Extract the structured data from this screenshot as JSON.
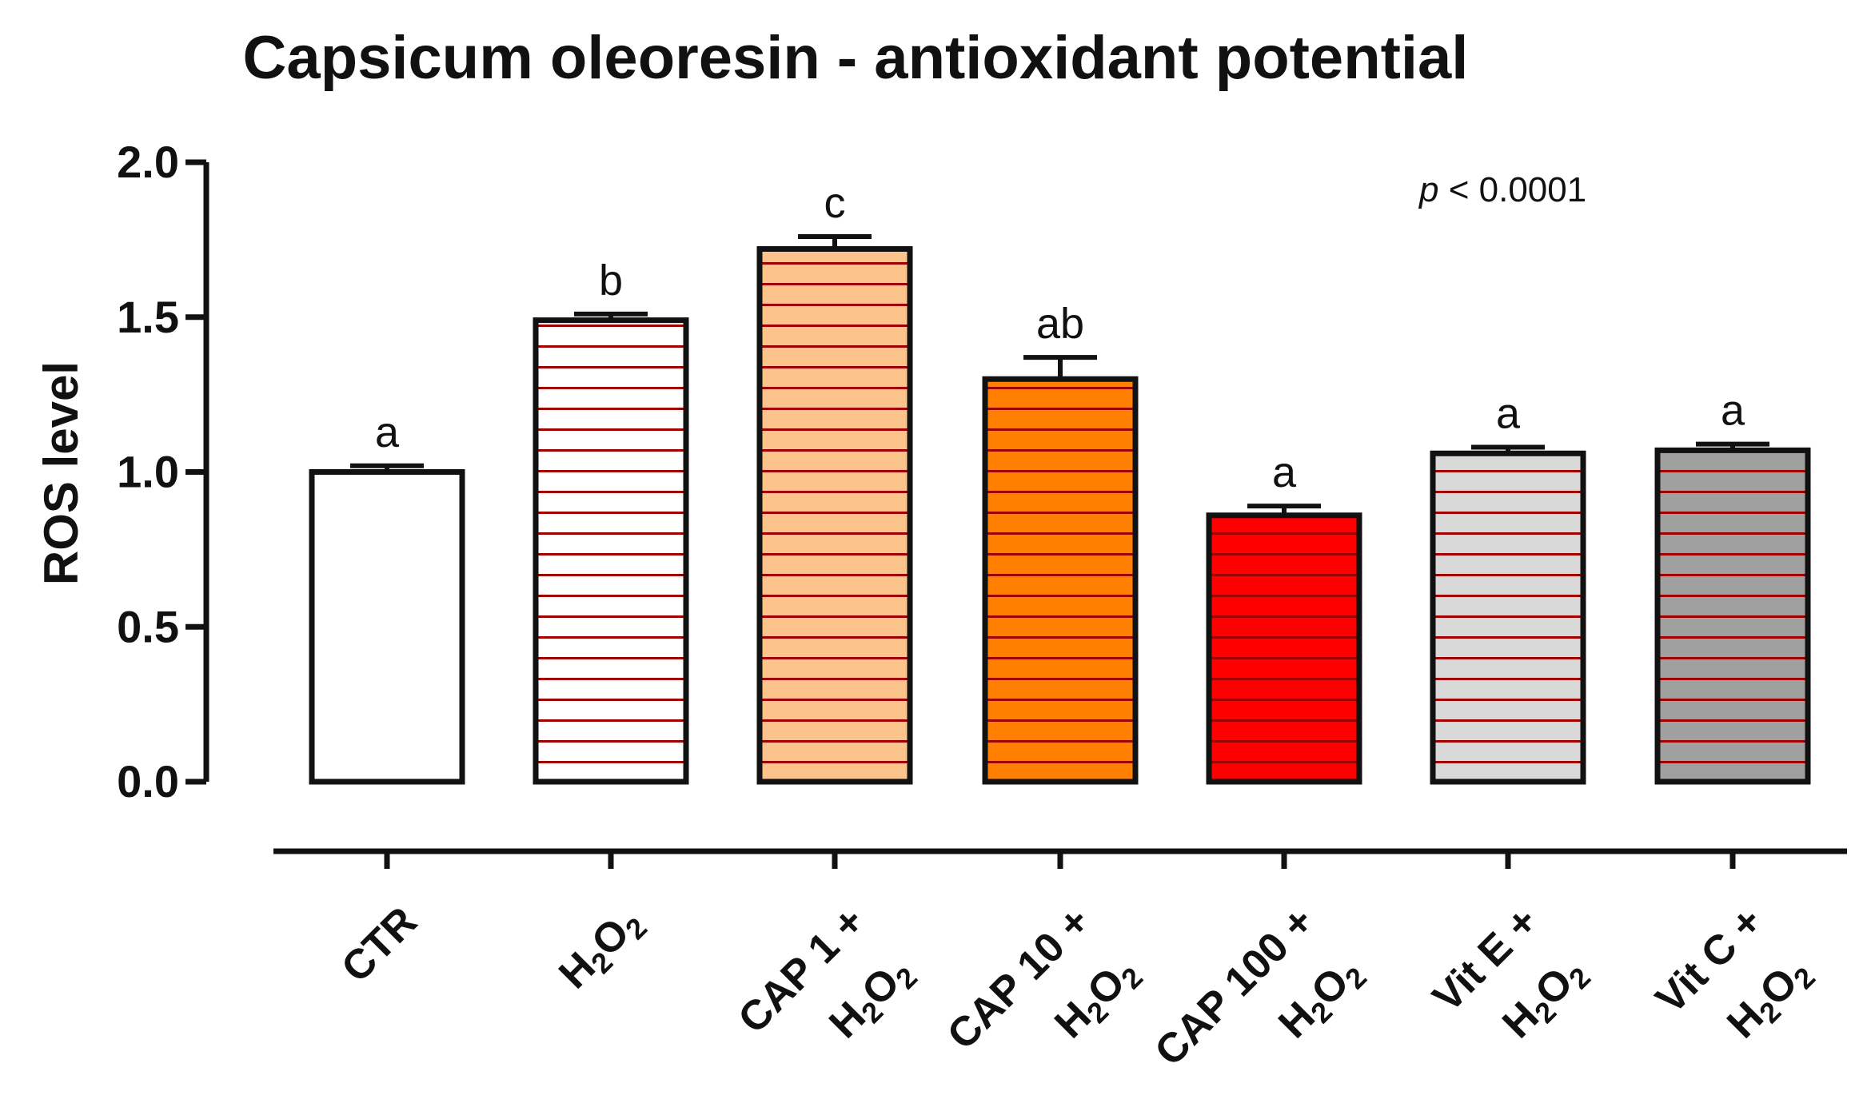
{
  "chart_data": {
    "type": "bar",
    "title": "Capsicum oleoresin - antioxidant potential",
    "ylabel": "ROS level",
    "xlabel": "",
    "ylim": [
      0,
      2.0
    ],
    "yticks": [
      "0.0",
      "0.5",
      "1.0",
      "1.5",
      "2.0"
    ],
    "annotation": {
      "prefix": "p",
      "text": " < 0.0001"
    },
    "categories": [
      {
        "line1": "CTR",
        "line2": "",
        "h2o2": false
      },
      {
        "line1": "",
        "line2": "",
        "h2o2": true
      },
      {
        "line1": "CAP 1 +",
        "line2": "",
        "h2o2": true
      },
      {
        "line1": "CAP 10 +",
        "line2": "",
        "h2o2": true
      },
      {
        "line1": "CAP 100 +",
        "line2": "",
        "h2o2": true
      },
      {
        "line1": "Vit E +",
        "line2": "",
        "h2o2": true
      },
      {
        "line1": "Vit C +",
        "line2": "",
        "h2o2": true
      }
    ],
    "h2o2_label": {
      "h": "H",
      "sub1": "2",
      "o": "O",
      "sub2": "2"
    },
    "values": [
      1.0,
      1.49,
      1.72,
      1.3,
      0.86,
      1.06,
      1.07
    ],
    "errors": [
      0.02,
      0.02,
      0.04,
      0.07,
      0.03,
      0.02,
      0.02
    ],
    "significance": [
      "a",
      "b",
      "c",
      "ab",
      "a",
      "a",
      "a"
    ],
    "fills": [
      "#ffffff",
      "#ffffff",
      "#fcc48a",
      "#ff7f00",
      "#ff0000",
      "#d9d9d9",
      "#a0a0a0"
    ],
    "hatched": [
      false,
      true,
      true,
      true,
      true,
      true,
      true
    ],
    "hatch_color": "#a00000",
    "edge_color": "#111111"
  }
}
